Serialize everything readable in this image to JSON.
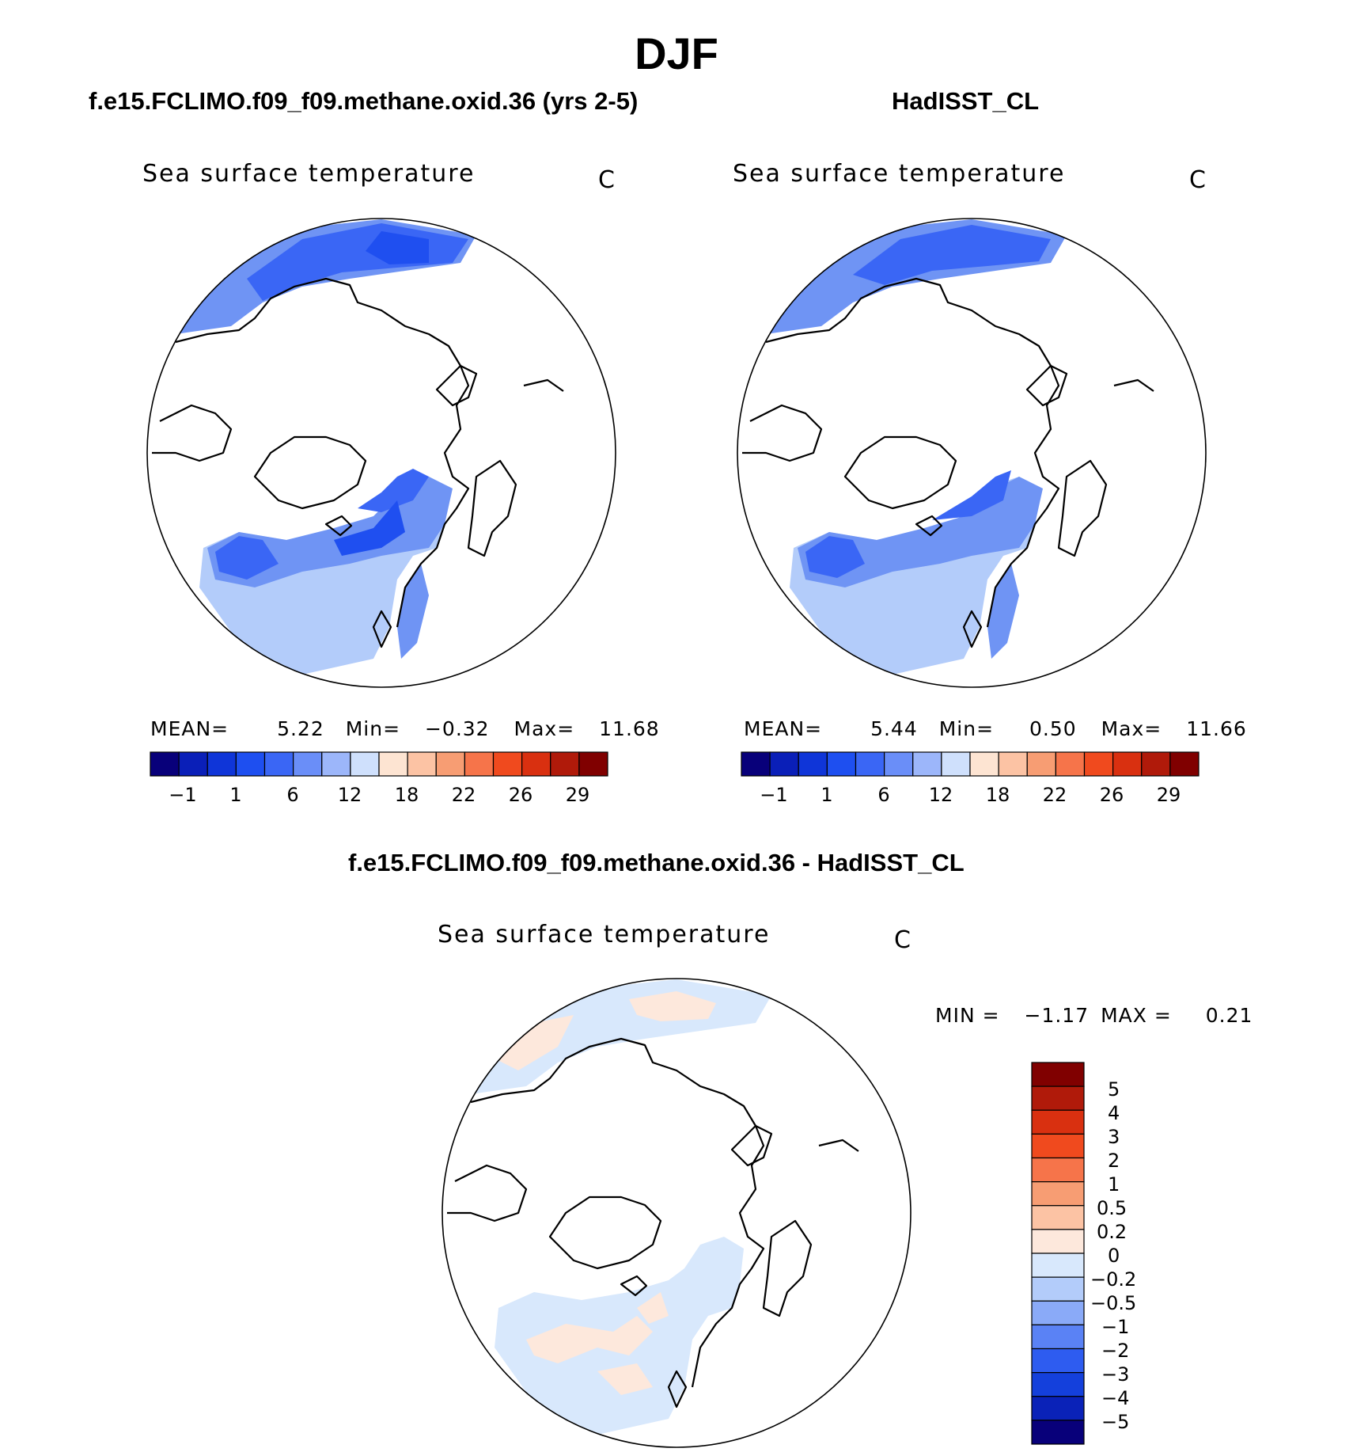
{
  "title": "DJF",
  "panels": [
    {
      "id": "model",
      "header": "f.e15.FCLIMO.f09_f09.methane.oxid.36 (yrs 2-5)",
      "variable": "Sea surface temperature",
      "units": "C",
      "stats": {
        "mean_label": "MEAN=",
        "mean": "5.22",
        "min_label": "Min=",
        "min": "−0.32",
        "max_label": "Max=",
        "max": "11.68"
      }
    },
    {
      "id": "obs",
      "header": "HadISST_CL",
      "variable": "Sea surface temperature",
      "units": "C",
      "stats": {
        "mean_label": "MEAN=",
        "mean": "5.44",
        "min_label": "Min=",
        "min": "0.50",
        "max_label": "Max=",
        "max": "11.66"
      }
    },
    {
      "id": "diff",
      "header": "f.e15.FCLIMO.f09_f09.methane.oxid.36 - HadISST_CL",
      "variable": "Sea surface temperature",
      "units": "C",
      "stats": {
        "min_label": "MIN =",
        "min": "−1.17",
        "max_label": "MAX =",
        "max": "0.21"
      }
    }
  ],
  "sst_colorbar": {
    "colors": [
      "#08007a",
      "#0a1fb8",
      "#0f35d8",
      "#1e4ff0",
      "#3a66f5",
      "#6a8ef8",
      "#9cb6fa",
      "#cfe0fc",
      "#fde4d2",
      "#fcc3a4",
      "#f79d73",
      "#f6744a",
      "#f04a1e",
      "#d93010",
      "#b01a0a",
      "#800000"
    ],
    "ticks": [
      "−1",
      "1",
      "6",
      "12",
      "18",
      "22",
      "26",
      "29"
    ]
  },
  "diff_colorbar": {
    "colors": [
      "#800000",
      "#b01a0a",
      "#d93010",
      "#f04a1e",
      "#f6744a",
      "#f79d73",
      "#fcc3a4",
      "#fde8dc",
      "#d8e8fc",
      "#b3ccfa",
      "#8aaaf8",
      "#5a82f5",
      "#2e5cf0",
      "#1440dc",
      "#0a22b8",
      "#08007a"
    ],
    "ticks": [
      "5",
      "4",
      "3",
      "2",
      "1",
      "0.5",
      "0.2",
      "0",
      "−0.2",
      "−0.5",
      "−1",
      "−2",
      "−3",
      "−4",
      "−5"
    ]
  }
}
